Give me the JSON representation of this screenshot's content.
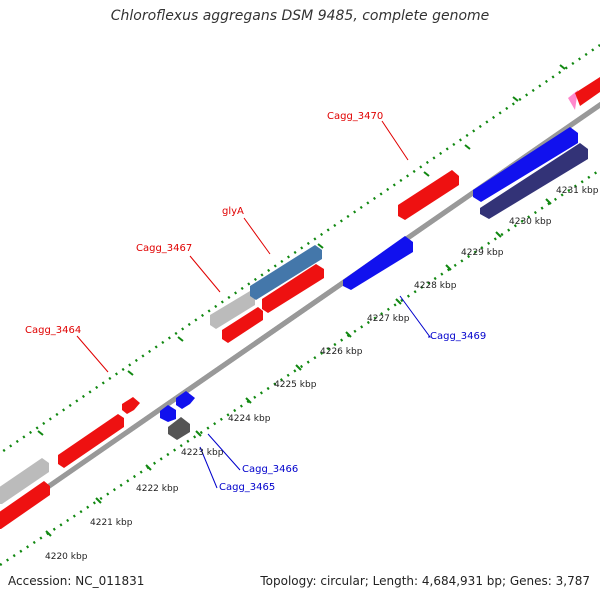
{
  "title": "Chloroflexus aggregans DSM 9485, complete genome",
  "footer": {
    "accession": "Accession: NC_011831",
    "summary": "Topology: circular; Length: 4,684,931 bp; Genes: 3,787"
  },
  "ticks": [
    {
      "label": "4220 kbp"
    },
    {
      "label": "4221 kbp"
    },
    {
      "label": "4222 kbp"
    },
    {
      "label": "4223 kbp"
    },
    {
      "label": "4224 kbp"
    },
    {
      "label": "4225 kbp"
    },
    {
      "label": "4226 kbp"
    },
    {
      "label": "4227 kbp"
    },
    {
      "label": "4228 kbp"
    },
    {
      "label": "4229 kbp"
    },
    {
      "label": "4230 kbp"
    },
    {
      "label": "4231 kbp"
    }
  ],
  "gene_labels": [
    {
      "text": "Cagg_3470",
      "strand": "forward"
    },
    {
      "text": "glyA",
      "strand": "forward"
    },
    {
      "text": "Cagg_3467",
      "strand": "forward"
    },
    {
      "text": "Cagg_3464",
      "strand": "forward"
    },
    {
      "text": "Cagg_3469",
      "strand": "reverse"
    },
    {
      "text": "Cagg_3466",
      "strand": "reverse"
    },
    {
      "text": "Cagg_3465",
      "strand": "reverse"
    }
  ],
  "colors": {
    "forward_gene": "#ee1111",
    "reverse_gene": "#1111ee",
    "rna_gene": "#4477aa",
    "pseudo_gene": "#bbbbbb",
    "dark_gene": "#333377",
    "backbone": "#888888",
    "ruler": "#118811"
  }
}
